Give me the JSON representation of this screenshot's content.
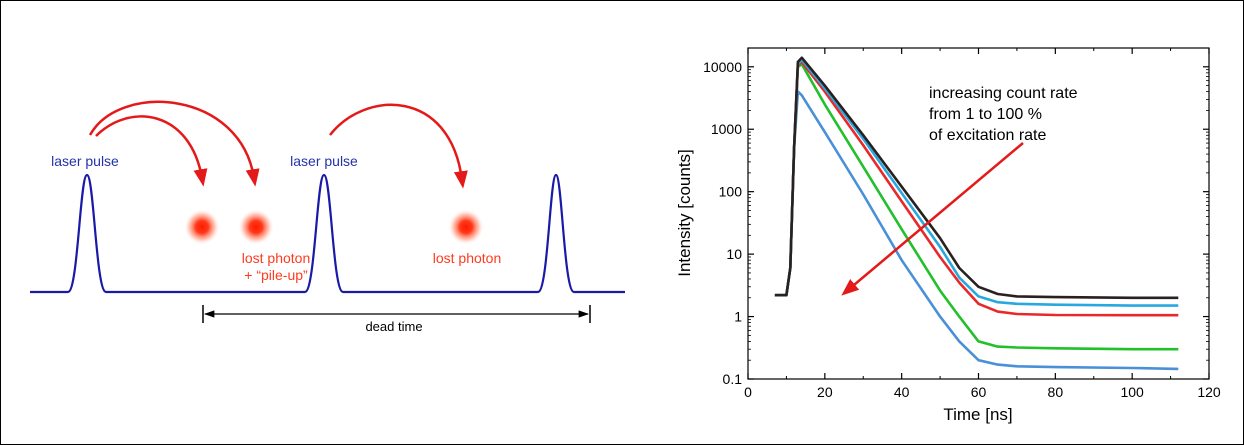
{
  "left_diagram": {
    "labels": {
      "laser_pulse_1": "laser pulse",
      "laser_pulse_2": "laser pulse",
      "lost_photon_1": "lost photon",
      "pile_up": "+ “pile-up”",
      "lost_photon_2": "lost photon",
      "dead_time": "dead time"
    },
    "colors": {
      "pulse": "#1a1aa8",
      "photon": "#ff2a1a",
      "arrow": "#e41a1a",
      "laser_label": "#2233aa",
      "photon_label": "#ff3b1f"
    }
  },
  "chart_data": {
    "type": "line",
    "xlabel": "Time [ns]",
    "ylabel": "Intensity [counts]",
    "xlim": [
      0,
      120
    ],
    "ylim": [
      0.1,
      20000
    ],
    "yscale": "log",
    "x_ticks": [
      "0",
      "20",
      "40",
      "60",
      "80",
      "100",
      "120"
    ],
    "y_ticks": [
      "0.1",
      "1",
      "10",
      "100",
      "1000",
      "10000"
    ],
    "annotation": [
      "increasing count rate",
      "from 1 to 100 %",
      "of excitation rate"
    ],
    "series": [
      {
        "color": "#2b2020",
        "points": [
          [
            7,
            2.2
          ],
          [
            10,
            2.2
          ],
          [
            11,
            6
          ],
          [
            12,
            500
          ],
          [
            13,
            12000
          ],
          [
            14,
            14000
          ],
          [
            20,
            5000
          ],
          [
            30,
            800
          ],
          [
            40,
            120
          ],
          [
            50,
            18
          ],
          [
            55,
            6
          ],
          [
            60,
            3
          ],
          [
            65,
            2.3
          ],
          [
            70,
            2.1
          ],
          [
            80,
            2.05
          ],
          [
            100,
            2.0
          ],
          [
            112,
            2.0
          ]
        ]
      },
      {
        "color": "#29a8e0",
        "points": [
          [
            7,
            2.2
          ],
          [
            10,
            2.2
          ],
          [
            11,
            6
          ],
          [
            12,
            500
          ],
          [
            13,
            11000
          ],
          [
            14,
            13000
          ],
          [
            20,
            4500
          ],
          [
            30,
            700
          ],
          [
            40,
            95
          ],
          [
            50,
            13
          ],
          [
            55,
            4.2
          ],
          [
            60,
            2.1
          ],
          [
            65,
            1.7
          ],
          [
            70,
            1.6
          ],
          [
            80,
            1.55
          ],
          [
            100,
            1.5
          ],
          [
            112,
            1.5
          ]
        ]
      },
      {
        "color": "#e8282a",
        "points": [
          [
            7,
            2.2
          ],
          [
            10,
            2.2
          ],
          [
            11,
            6
          ],
          [
            12,
            500
          ],
          [
            13,
            10500
          ],
          [
            14,
            12000
          ],
          [
            20,
            4000
          ],
          [
            30,
            550
          ],
          [
            40,
            70
          ],
          [
            50,
            9
          ],
          [
            55,
            3.5
          ],
          [
            60,
            1.6
          ],
          [
            65,
            1.2
          ],
          [
            70,
            1.1
          ],
          [
            80,
            1.06
          ],
          [
            100,
            1.05
          ],
          [
            112,
            1.05
          ]
        ]
      },
      {
        "color": "#22c02a",
        "points": [
          [
            7,
            2.2
          ],
          [
            10,
            2.2
          ],
          [
            11,
            6
          ],
          [
            12,
            500
          ],
          [
            13,
            10000
          ],
          [
            14,
            11000
          ],
          [
            20,
            2500
          ],
          [
            30,
            250
          ],
          [
            40,
            25
          ],
          [
            50,
            2.6
          ],
          [
            55,
            1.0
          ],
          [
            60,
            0.4
          ],
          [
            65,
            0.33
          ],
          [
            70,
            0.32
          ],
          [
            80,
            0.31
          ],
          [
            100,
            0.3
          ],
          [
            112,
            0.3
          ]
        ]
      },
      {
        "color": "#4a90d8",
        "points": [
          [
            7,
            2.2
          ],
          [
            10,
            2.2
          ],
          [
            11,
            6
          ],
          [
            12,
            500
          ],
          [
            13,
            4000
          ],
          [
            14,
            3500
          ],
          [
            20,
            900
          ],
          [
            30,
            90
          ],
          [
            40,
            8
          ],
          [
            50,
            1.0
          ],
          [
            55,
            0.4
          ],
          [
            60,
            0.2
          ],
          [
            65,
            0.17
          ],
          [
            70,
            0.16
          ],
          [
            80,
            0.155
          ],
          [
            100,
            0.15
          ],
          [
            112,
            0.145
          ]
        ]
      }
    ]
  }
}
